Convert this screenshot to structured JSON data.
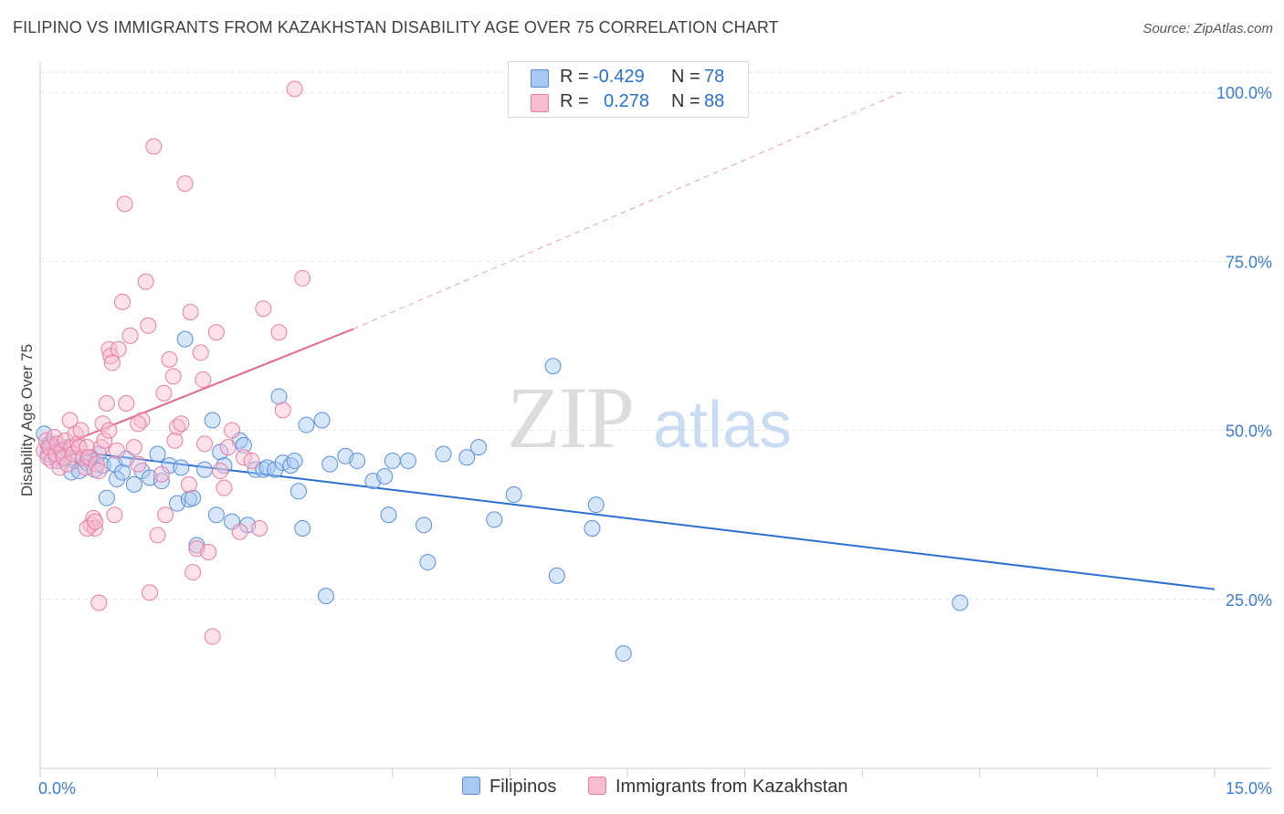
{
  "title": "FILIPINO VS IMMIGRANTS FROM KAZAKHSTAN DISABILITY AGE OVER 75 CORRELATION CHART",
  "source": "Source: ZipAtlas.com",
  "watermark": {
    "zip": "ZIP",
    "atlas": "atlas"
  },
  "legend": {
    "r_label": "R =",
    "n_label": "N =",
    "items": [
      {
        "name": "Filipinos",
        "r": "-0.429",
        "n": "78",
        "fill": "#a8c8f4",
        "stroke": "#5a8fd8"
      },
      {
        "name": "Immigrants from Kazakhstan",
        "r": "0.278",
        "n": "88",
        "fill": "#f8bcd0",
        "stroke": "#e87fa2"
      }
    ]
  },
  "chart_data": {
    "type": "scatter",
    "title": "FILIPINO VS IMMIGRANTS FROM KAZAKHSTAN DISABILITY AGE OVER 75 CORRELATION CHART",
    "xlabel": "",
    "ylabel": "Disability Age Over 75",
    "xlim": [
      0,
      15
    ],
    "ylim": [
      0,
      103
    ],
    "x_tick_labels": [
      "0.0%",
      "15.0%"
    ],
    "y_ticks": [
      25,
      50,
      75,
      100
    ],
    "y_tick_labels": [
      "25.0%",
      "50.0%",
      "75.0%",
      "100.0%"
    ],
    "grid": true,
    "legend_placement": "top-center",
    "series": [
      {
        "name": "Filipinos",
        "color": "#5a8fd8",
        "points": [
          [
            0.1,
            46.5
          ],
          [
            0.15,
            47.8
          ],
          [
            0.2,
            46.2
          ],
          [
            0.25,
            47.2
          ],
          [
            0.3,
            45.8
          ],
          [
            0.35,
            47.5
          ],
          [
            0.4,
            43.8
          ],
          [
            0.45,
            45.5
          ],
          [
            0.5,
            44.0
          ],
          [
            0.55,
            45.8
          ],
          [
            0.6,
            45.2
          ],
          [
            0.65,
            46.0
          ],
          [
            0.7,
            44.2
          ],
          [
            0.75,
            46.5
          ],
          [
            0.8,
            44.8
          ],
          [
            0.85,
            40.0
          ],
          [
            0.95,
            45.0
          ],
          [
            0.98,
            42.8
          ],
          [
            1.05,
            43.8
          ],
          [
            1.1,
            45.8
          ],
          [
            1.2,
            42.0
          ],
          [
            1.3,
            44.0
          ],
          [
            1.4,
            43.0
          ],
          [
            1.5,
            46.5
          ],
          [
            1.55,
            42.5
          ],
          [
            1.65,
            44.8
          ],
          [
            1.75,
            39.2
          ],
          [
            1.8,
            44.5
          ],
          [
            1.85,
            63.5
          ],
          [
            1.9,
            39.8
          ],
          [
            1.95,
            40.0
          ],
          [
            2.0,
            33.0
          ],
          [
            2.1,
            44.2
          ],
          [
            2.2,
            51.5
          ],
          [
            2.25,
            37.5
          ],
          [
            2.3,
            46.8
          ],
          [
            2.35,
            44.8
          ],
          [
            2.45,
            36.5
          ],
          [
            2.55,
            48.5
          ],
          [
            2.6,
            47.8
          ],
          [
            2.65,
            36.0
          ],
          [
            2.75,
            44.2
          ],
          [
            2.85,
            44.2
          ],
          [
            2.9,
            44.5
          ],
          [
            3.0,
            44.2
          ],
          [
            3.05,
            55.0
          ],
          [
            3.1,
            45.2
          ],
          [
            3.2,
            44.8
          ],
          [
            3.25,
            45.5
          ],
          [
            3.3,
            41.0
          ],
          [
            3.35,
            35.5
          ],
          [
            3.4,
            50.8
          ],
          [
            3.6,
            51.5
          ],
          [
            3.65,
            25.5
          ],
          [
            3.7,
            45.0
          ],
          [
            3.9,
            46.2
          ],
          [
            4.05,
            45.5
          ],
          [
            4.25,
            42.5
          ],
          [
            4.4,
            43.2
          ],
          [
            4.45,
            37.5
          ],
          [
            4.5,
            45.5
          ],
          [
            4.7,
            45.5
          ],
          [
            4.9,
            36.0
          ],
          [
            4.95,
            30.5
          ],
          [
            5.15,
            46.5
          ],
          [
            5.45,
            46.0
          ],
          [
            5.6,
            47.5
          ],
          [
            5.8,
            36.8
          ],
          [
            6.05,
            40.5
          ],
          [
            6.55,
            59.5
          ],
          [
            6.6,
            28.5
          ],
          [
            7.05,
            35.5
          ],
          [
            7.1,
            39.0
          ],
          [
            7.45,
            17.0
          ],
          [
            11.75,
            24.5
          ],
          [
            0.05,
            49.5
          ],
          [
            0.12,
            48.0
          ],
          [
            0.22,
            45.5
          ]
        ],
        "trend": {
          "x": [
            0,
            15
          ],
          "y": [
            47.5,
            26.5
          ]
        }
      },
      {
        "name": "Immigrants from Kazakhstan",
        "color": "#e87fa2",
        "points": [
          [
            0.05,
            47.0
          ],
          [
            0.08,
            48.5
          ],
          [
            0.1,
            46.0
          ],
          [
            0.12,
            47.5
          ],
          [
            0.15,
            45.5
          ],
          [
            0.18,
            49.0
          ],
          [
            0.2,
            46.5
          ],
          [
            0.22,
            48.0
          ],
          [
            0.25,
            44.5
          ],
          [
            0.28,
            47.0
          ],
          [
            0.3,
            46.0
          ],
          [
            0.32,
            48.5
          ],
          [
            0.35,
            45.0
          ],
          [
            0.38,
            51.5
          ],
          [
            0.4,
            47.5
          ],
          [
            0.42,
            46.5
          ],
          [
            0.45,
            49.5
          ],
          [
            0.48,
            48.0
          ],
          [
            0.5,
            47.5
          ],
          [
            0.52,
            50.0
          ],
          [
            0.55,
            46.0
          ],
          [
            0.58,
            44.5
          ],
          [
            0.6,
            47.5
          ],
          [
            0.62,
            46.0
          ],
          [
            0.65,
            36.0
          ],
          [
            0.68,
            37.0
          ],
          [
            0.7,
            35.5
          ],
          [
            0.72,
            45.0
          ],
          [
            0.75,
            24.5
          ],
          [
            0.78,
            47.5
          ],
          [
            0.8,
            51.0
          ],
          [
            0.82,
            48.5
          ],
          [
            0.85,
            54.0
          ],
          [
            0.88,
            62.0
          ],
          [
            0.9,
            61.0
          ],
          [
            0.92,
            60.0
          ],
          [
            0.95,
            37.5
          ],
          [
            0.98,
            47.0
          ],
          [
            1.0,
            62.0
          ],
          [
            1.05,
            69.0
          ],
          [
            1.1,
            54.0
          ],
          [
            1.15,
            64.0
          ],
          [
            1.2,
            47.5
          ],
          [
            1.25,
            45.0
          ],
          [
            1.3,
            51.5
          ],
          [
            1.35,
            72.0
          ],
          [
            1.38,
            65.5
          ],
          [
            1.4,
            26.0
          ],
          [
            1.45,
            92.0
          ],
          [
            1.5,
            34.5
          ],
          [
            1.55,
            43.5
          ],
          [
            1.6,
            37.5
          ],
          [
            1.65,
            60.5
          ],
          [
            1.7,
            58.0
          ],
          [
            1.72,
            48.5
          ],
          [
            1.75,
            50.5
          ],
          [
            1.8,
            51.0
          ],
          [
            1.85,
            86.5
          ],
          [
            1.9,
            42.0
          ],
          [
            1.92,
            67.5
          ],
          [
            1.95,
            29.0
          ],
          [
            2.0,
            32.5
          ],
          [
            2.05,
            61.5
          ],
          [
            2.1,
            48.0
          ],
          [
            2.15,
            32.0
          ],
          [
            2.2,
            19.5
          ],
          [
            2.25,
            64.5
          ],
          [
            2.3,
            44.0
          ],
          [
            2.35,
            41.5
          ],
          [
            2.4,
            47.5
          ],
          [
            2.45,
            50.0
          ],
          [
            2.55,
            35.0
          ],
          [
            2.6,
            46.0
          ],
          [
            2.7,
            45.5
          ],
          [
            2.8,
            35.5
          ],
          [
            2.85,
            68.0
          ],
          [
            3.05,
            64.5
          ],
          [
            3.1,
            53.0
          ],
          [
            3.25,
            100.5
          ],
          [
            3.35,
            72.5
          ],
          [
            1.08,
            83.5
          ],
          [
            0.6,
            35.5
          ],
          [
            0.7,
            36.5
          ],
          [
            0.75,
            44.0
          ],
          [
            0.88,
            50.0
          ],
          [
            1.25,
            51.0
          ],
          [
            1.58,
            55.5
          ],
          [
            2.08,
            57.5
          ]
        ],
        "trend": {
          "x": [
            0,
            4.0
          ],
          "y": [
            46.5,
            65.0
          ]
        },
        "trend_extension": {
          "x": [
            4.0,
            11.0
          ],
          "y": [
            65.0,
            100.0
          ]
        }
      }
    ]
  }
}
